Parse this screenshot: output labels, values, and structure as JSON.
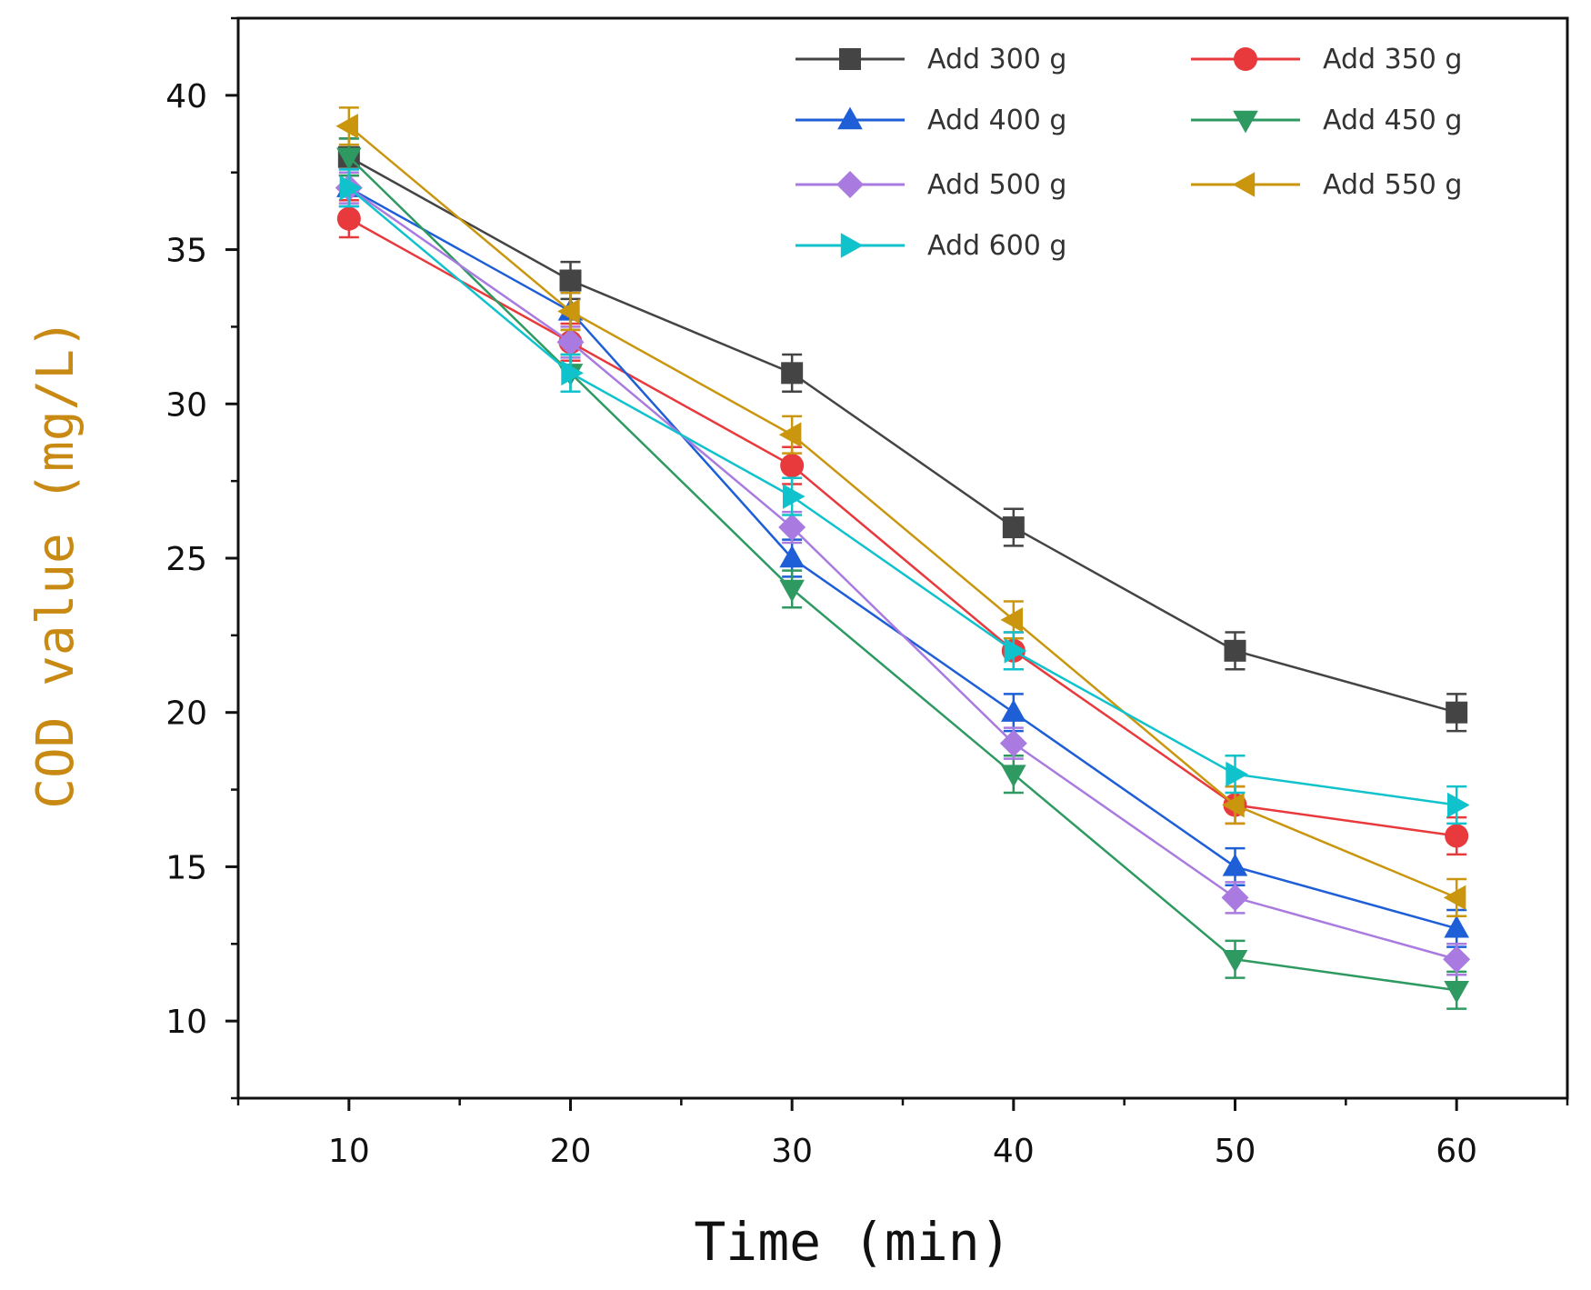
{
  "chart_data": {
    "type": "line",
    "title": "",
    "xlabel": "Time (min)",
    "ylabel": "COD value (mg/L)",
    "ylabel_color": "#c98a14",
    "xlim": [
      5,
      65
    ],
    "ylim": [
      7.5,
      42.5
    ],
    "x_ticks": [
      10,
      20,
      30,
      40,
      50,
      60
    ],
    "x_tick_labels": [
      "10",
      "20",
      "30",
      "40",
      "50",
      "60"
    ],
    "y_ticks": [
      10,
      15,
      20,
      25,
      30,
      35,
      40
    ],
    "y_tick_labels": [
      "10",
      "15",
      "20",
      "25",
      "30",
      "35",
      "40"
    ],
    "legend_position": "top-right",
    "x": [
      10,
      20,
      30,
      40,
      50,
      60
    ],
    "series": [
      {
        "name": "Add 300 g",
        "marker": "square",
        "color": "#444444",
        "values": [
          38,
          34,
          31,
          26,
          22,
          20
        ],
        "errors": [
          0.6,
          0.6,
          0.6,
          0.6,
          0.6,
          0.6
        ]
      },
      {
        "name": "Add 350 g",
        "marker": "circle",
        "color": "#e8393c",
        "values": [
          36,
          32,
          28,
          22,
          17,
          16
        ],
        "errors": [
          0.6,
          0.6,
          0.6,
          0.6,
          0.6,
          0.6
        ]
      },
      {
        "name": "Add 400 g",
        "marker": "triangle-up",
        "color": "#1e5fd8",
        "values": [
          37,
          33,
          25,
          20,
          15,
          13
        ],
        "errors": [
          0.6,
          0.6,
          0.6,
          0.6,
          0.6,
          0.6
        ]
      },
      {
        "name": "Add 450 g",
        "marker": "triangle-down",
        "color": "#2e9a62",
        "values": [
          38,
          31,
          24,
          18,
          12,
          11
        ],
        "errors": [
          0.6,
          0.6,
          0.6,
          0.6,
          0.6,
          0.6
        ]
      },
      {
        "name": "Add 500 g",
        "marker": "diamond",
        "color": "#a97be0",
        "values": [
          37,
          32,
          26,
          19,
          14,
          12
        ],
        "errors": [
          0.5,
          0.5,
          0.5,
          0.5,
          0.5,
          0.5
        ]
      },
      {
        "name": "Add 550 g",
        "marker": "triangle-left",
        "color": "#c9960e",
        "values": [
          39,
          33,
          29,
          23,
          17,
          14
        ],
        "errors": [
          0.6,
          0.6,
          0.6,
          0.6,
          0.6,
          0.6
        ]
      },
      {
        "name": "Add 600 g",
        "marker": "triangle-right",
        "color": "#10c2cc",
        "values": [
          37,
          31,
          27,
          22,
          18,
          17
        ],
        "errors": [
          0.6,
          0.6,
          0.6,
          0.6,
          0.6,
          0.6
        ]
      }
    ]
  }
}
